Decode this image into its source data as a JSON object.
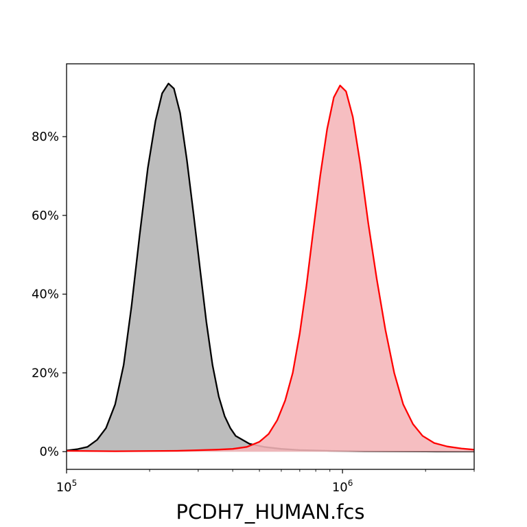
{
  "chart_data": {
    "type": "area",
    "title": "",
    "xlabel": "PCDH7_HUMAN.fcs",
    "ylabel": "",
    "x_scale": "log",
    "xlim": [
      100000,
      3000000
    ],
    "ylim": [
      -0.045,
      0.985
    ],
    "x_ticks": [
      {
        "value": 100000,
        "base": "10",
        "exp": "5"
      },
      {
        "value": 1000000,
        "base": "10",
        "exp": "6"
      }
    ],
    "y_ticks": [
      {
        "value": 0.0,
        "label": "0%"
      },
      {
        "value": 0.2,
        "label": "20%"
      },
      {
        "value": 0.4,
        "label": "40%"
      },
      {
        "value": 0.6,
        "label": "60%"
      },
      {
        "value": 0.8,
        "label": "80%"
      }
    ],
    "grid": false,
    "legend": "none",
    "series": [
      {
        "color": "#000000",
        "fill": "#b3b3b3",
        "points": [
          [
            100000,
            0.003
          ],
          [
            109000,
            0.006
          ],
          [
            119000,
            0.012
          ],
          [
            129000,
            0.03
          ],
          [
            139000,
            0.06
          ],
          [
            150000,
            0.12
          ],
          [
            161000,
            0.22
          ],
          [
            172000,
            0.37
          ],
          [
            184000,
            0.55
          ],
          [
            197000,
            0.72
          ],
          [
            210000,
            0.84
          ],
          [
            222000,
            0.91
          ],
          [
            234000,
            0.935
          ],
          [
            245000,
            0.922
          ],
          [
            258000,
            0.86
          ],
          [
            273000,
            0.74
          ],
          [
            289000,
            0.6
          ],
          [
            305000,
            0.46
          ],
          [
            321000,
            0.33
          ],
          [
            338000,
            0.22
          ],
          [
            356000,
            0.14
          ],
          [
            374000,
            0.09
          ],
          [
            392000,
            0.06
          ],
          [
            410000,
            0.04
          ],
          [
            460000,
            0.02
          ],
          [
            520000,
            0.012
          ],
          [
            600000,
            0.007
          ],
          [
            700000,
            0.004
          ],
          [
            900000,
            0.002
          ],
          [
            1200000,
            0.001
          ],
          [
            2000000,
            0.0005
          ],
          [
            3000000,
            0.0003
          ]
        ]
      },
      {
        "color": "#ff0000",
        "fill": "#f5b5b8",
        "points": [
          [
            100000,
            0.002
          ],
          [
            150000,
            0.001
          ],
          [
            250000,
            0.002
          ],
          [
            350000,
            0.005
          ],
          [
            400000,
            0.007
          ],
          [
            450000,
            0.012
          ],
          [
            500000,
            0.025
          ],
          [
            540000,
            0.045
          ],
          [
            580000,
            0.08
          ],
          [
            620000,
            0.13
          ],
          [
            660000,
            0.2
          ],
          [
            700000,
            0.3
          ],
          [
            740000,
            0.42
          ],
          [
            780000,
            0.55
          ],
          [
            830000,
            0.7
          ],
          [
            880000,
            0.82
          ],
          [
            930000,
            0.9
          ],
          [
            980000,
            0.93
          ],
          [
            1030000,
            0.915
          ],
          [
            1090000,
            0.85
          ],
          [
            1160000,
            0.73
          ],
          [
            1240000,
            0.58
          ],
          [
            1330000,
            0.44
          ],
          [
            1430000,
            0.31
          ],
          [
            1540000,
            0.2
          ],
          [
            1660000,
            0.12
          ],
          [
            1800000,
            0.07
          ],
          [
            1950000,
            0.04
          ],
          [
            2150000,
            0.022
          ],
          [
            2400000,
            0.013
          ],
          [
            2700000,
            0.008
          ],
          [
            3000000,
            0.005
          ]
        ]
      }
    ]
  }
}
